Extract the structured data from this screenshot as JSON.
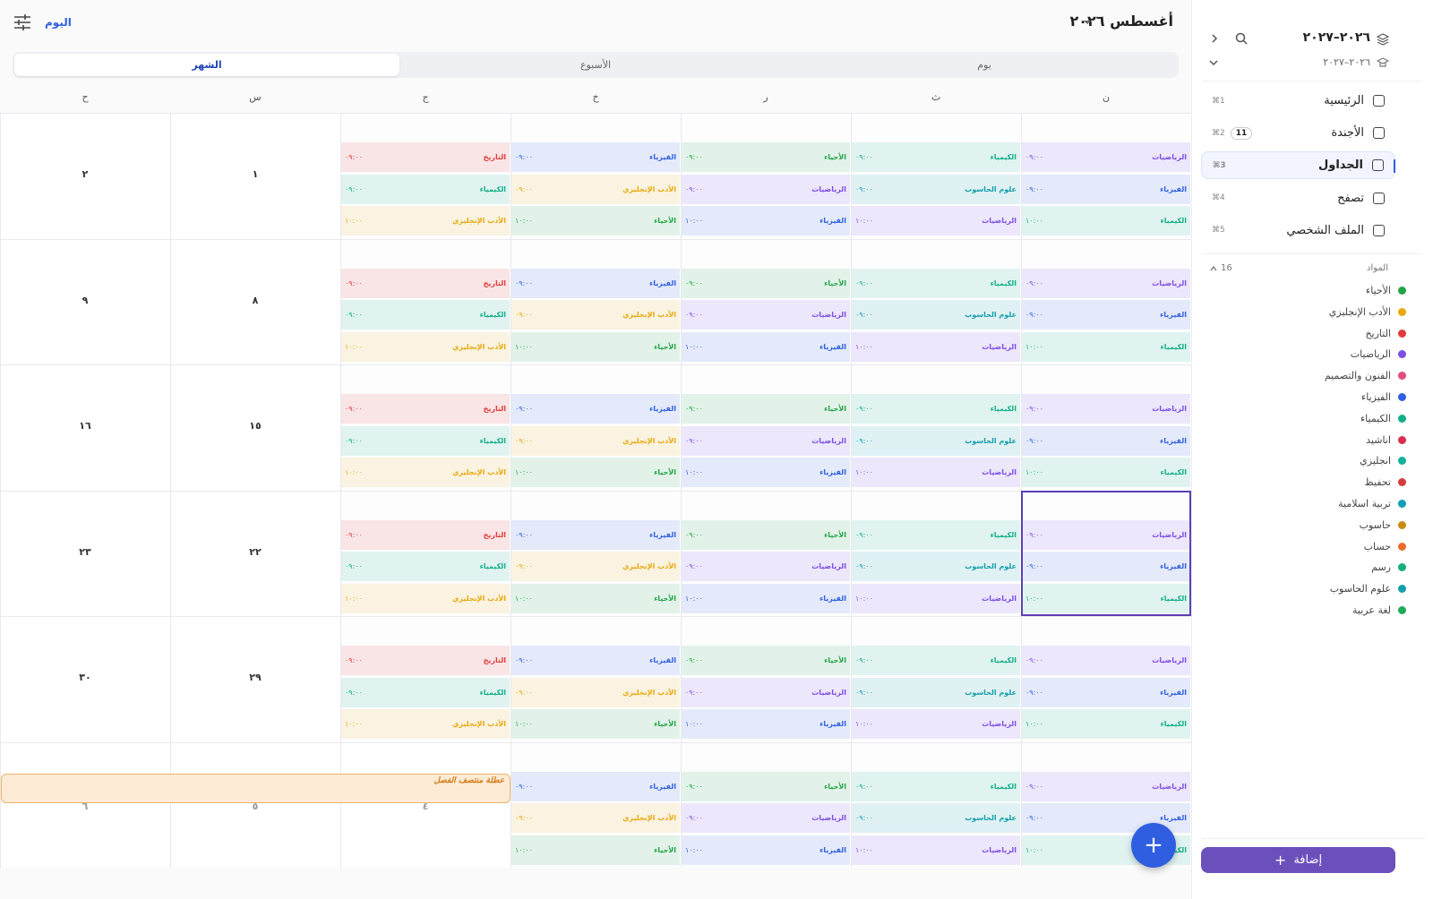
{
  "header": {
    "title": "أغسطس ٢٠٢٦",
    "today": "اليوم",
    "tabs": [
      {
        "label": "يوم"
      },
      {
        "label": "الأسبوع"
      },
      {
        "label": "الشهر",
        "active": true
      }
    ]
  },
  "weekdays": [
    "ن",
    "ث",
    "ر",
    "خ",
    "ج",
    "س",
    "ح"
  ],
  "weeks": [
    {
      "days": [
        {
          "events": [
            {
              "subject": "الرياضيات",
              "time": "٠٩:٠٠"
            },
            {
              "subject": "الفيزياء",
              "time": "٠٩:٠٠"
            },
            {
              "subject": "الكيمياء",
              "time": "١٠:٠٠"
            }
          ]
        },
        {
          "events": [
            {
              "subject": "الكيمياء",
              "time": "٠٩:٠٠"
            },
            {
              "subject": "علوم الحاسوب",
              "time": "٠٩:٠٠"
            },
            {
              "subject": "الرياضيات",
              "time": "١٠:٠٠"
            }
          ]
        },
        {
          "events": [
            {
              "subject": "الأحياء",
              "time": "٠٩:٠٠"
            },
            {
              "subject": "الرياضيات",
              "time": "٠٩:٠٠"
            },
            {
              "subject": "الفيزياء",
              "time": "١٠:٠٠"
            }
          ]
        },
        {
          "events": [
            {
              "subject": "الفيزياء",
              "time": "٠٩:٠٠"
            },
            {
              "subject": "الأدب الإنجليزي",
              "time": "٠٩:٠٠"
            },
            {
              "subject": "الأحياء",
              "time": "١٠:٠٠"
            }
          ]
        },
        {
          "events": [
            {
              "subject": "التاريخ",
              "time": "٠٩:٠٠"
            },
            {
              "subject": "الكيمياء",
              "time": "٠٩:٠٠"
            },
            {
              "subject": "الأدب الإنجليزي",
              "time": "١٠:٠٠"
            }
          ]
        },
        {
          "number": "١"
        },
        {
          "number": "٢"
        }
      ]
    },
    {
      "days": [
        {
          "events": [
            {
              "subject": "الرياضيات",
              "time": "٠٩:٠٠"
            },
            {
              "subject": "الفيزياء",
              "time": "٠٩:٠٠"
            },
            {
              "subject": "الكيمياء",
              "time": "١٠:٠٠"
            }
          ]
        },
        {
          "events": [
            {
              "subject": "الكيمياء",
              "time": "٠٩:٠٠"
            },
            {
              "subject": "علوم الحاسوب",
              "time": "٠٩:٠٠"
            },
            {
              "subject": "الرياضيات",
              "time": "١٠:٠٠"
            }
          ]
        },
        {
          "events": [
            {
              "subject": "الأحياء",
              "time": "٠٩:٠٠"
            },
            {
              "subject": "الرياضيات",
              "time": "٠٩:٠٠"
            },
            {
              "subject": "الفيزياء",
              "time": "١٠:٠٠"
            }
          ]
        },
        {
          "events": [
            {
              "subject": "الفيزياء",
              "time": "٠٩:٠٠"
            },
            {
              "subject": "الأدب الإنجليزي",
              "time": "٠٩:٠٠"
            },
            {
              "subject": "الأحياء",
              "time": "١٠:٠٠"
            }
          ]
        },
        {
          "events": [
            {
              "subject": "التاريخ",
              "time": "٠٩:٠٠"
            },
            {
              "subject": "الكيمياء",
              "time": "٠٩:٠٠"
            },
            {
              "subject": "الأدب الإنجليزي",
              "time": "١٠:٠٠"
            }
          ]
        },
        {
          "number": "٨"
        },
        {
          "number": "٩"
        }
      ]
    },
    {
      "days": [
        {
          "events": [
            {
              "subject": "الرياضيات",
              "time": "٠٩:٠٠"
            },
            {
              "subject": "الفيزياء",
              "time": "٠٩:٠٠"
            },
            {
              "subject": "الكيمياء",
              "time": "١٠:٠٠"
            }
          ]
        },
        {
          "events": [
            {
              "subject": "الكيمياء",
              "time": "٠٩:٠٠"
            },
            {
              "subject": "علوم الحاسوب",
              "time": "٠٩:٠٠"
            },
            {
              "subject": "الرياضيات",
              "time": "١٠:٠٠"
            }
          ]
        },
        {
          "events": [
            {
              "subject": "الأحياء",
              "time": "٠٩:٠٠"
            },
            {
              "subject": "الرياضيات",
              "time": "٠٩:٠٠"
            },
            {
              "subject": "الفيزياء",
              "time": "١٠:٠٠"
            }
          ]
        },
        {
          "events": [
            {
              "subject": "الفيزياء",
              "time": "٠٩:٠٠"
            },
            {
              "subject": "الأدب الإنجليزي",
              "time": "٠٩:٠٠"
            },
            {
              "subject": "الأحياء",
              "time": "١٠:٠٠"
            }
          ]
        },
        {
          "events": [
            {
              "subject": "التاريخ",
              "time": "٠٩:٠٠"
            },
            {
              "subject": "الكيمياء",
              "time": "٠٩:٠٠"
            },
            {
              "subject": "الأدب الإنجليزي",
              "time": "١٠:٠٠"
            }
          ]
        },
        {
          "number": "١٥"
        },
        {
          "number": "١٦"
        }
      ]
    },
    {
      "days": [
        {
          "selected": true,
          "events": [
            {
              "subject": "الرياضيات",
              "time": "٠٩:٠٠"
            },
            {
              "subject": "الفيزياء",
              "time": "٠٩:٠٠"
            },
            {
              "subject": "الكيمياء",
              "time": "١٠:٠٠"
            }
          ]
        },
        {
          "events": [
            {
              "subject": "الكيمياء",
              "time": "٠٩:٠٠"
            },
            {
              "subject": "علوم الحاسوب",
              "time": "٠٩:٠٠"
            },
            {
              "subject": "الرياضيات",
              "time": "١٠:٠٠"
            }
          ]
        },
        {
          "events": [
            {
              "subject": "الأحياء",
              "time": "٠٩:٠٠"
            },
            {
              "subject": "الرياضيات",
              "time": "٠٩:٠٠"
            },
            {
              "subject": "الفيزياء",
              "time": "١٠:٠٠"
            }
          ]
        },
        {
          "events": [
            {
              "subject": "الفيزياء",
              "time": "٠٩:٠٠"
            },
            {
              "subject": "الأدب الإنجليزي",
              "time": "٠٩:٠٠"
            },
            {
              "subject": "الأحياء",
              "time": "١٠:٠٠"
            }
          ]
        },
        {
          "events": [
            {
              "subject": "التاريخ",
              "time": "٠٩:٠٠"
            },
            {
              "subject": "الكيمياء",
              "time": "٠٩:٠٠"
            },
            {
              "subject": "الأدب الإنجليزي",
              "time": "١٠:٠٠"
            }
          ]
        },
        {
          "number": "٢٢"
        },
        {
          "number": "٢٣"
        }
      ]
    },
    {
      "days": [
        {
          "events": [
            {
              "subject": "الرياضيات",
              "time": "٠٩:٠٠"
            },
            {
              "subject": "الفيزياء",
              "time": "٠٩:٠٠"
            },
            {
              "subject": "الكيمياء",
              "time": "١٠:٠٠"
            }
          ]
        },
        {
          "events": [
            {
              "subject": "الكيمياء",
              "time": "٠٩:٠٠"
            },
            {
              "subject": "علوم الحاسوب",
              "time": "٠٩:٠٠"
            },
            {
              "subject": "الرياضيات",
              "time": "١٠:٠٠"
            }
          ]
        },
        {
          "events": [
            {
              "subject": "الأحياء",
              "time": "٠٩:٠٠"
            },
            {
              "subject": "الرياضيات",
              "time": "٠٩:٠٠"
            },
            {
              "subject": "الفيزياء",
              "time": "١٠:٠٠"
            }
          ]
        },
        {
          "events": [
            {
              "subject": "الفيزياء",
              "time": "٠٩:٠٠"
            },
            {
              "subject": "الأدب الإنجليزي",
              "time": "٠٩:٠٠"
            },
            {
              "subject": "الأحياء",
              "time": "١٠:٠٠"
            }
          ]
        },
        {
          "events": [
            {
              "subject": "التاريخ",
              "time": "٠٩:٠٠"
            },
            {
              "subject": "الكيمياء",
              "time": "٠٩:٠٠"
            },
            {
              "subject": "الأدب الإنجليزي",
              "time": "١٠:٠٠"
            }
          ]
        },
        {
          "number": "٢٩"
        },
        {
          "number": "٣٠"
        }
      ]
    },
    {
      "days": [
        {
          "events": [
            {
              "subject": "الرياضيات",
              "time": "٠٩:٠٠"
            },
            {
              "subject": "الفيزياء",
              "time": "٠٩:٠٠"
            },
            {
              "subject": "الكيمياء",
              "time": "١٠:٠٠"
            }
          ]
        },
        {
          "events": [
            {
              "subject": "الكيمياء",
              "time": "٠٩:٠٠"
            },
            {
              "subject": "علوم الحاسوب",
              "time": "٠٩:٠٠"
            },
            {
              "subject": "الرياضيات",
              "time": "١٠:٠٠"
            }
          ]
        },
        {
          "events": [
            {
              "subject": "الأحياء",
              "time": "٠٩:٠٠"
            },
            {
              "subject": "الرياضيات",
              "time": "٠٩:٠٠"
            },
            {
              "subject": "الفيزياء",
              "time": "١٠:٠٠"
            }
          ]
        },
        {
          "events": [
            {
              "subject": "الفيزياء",
              "time": "٠٩:٠٠"
            },
            {
              "subject": "الأدب الإنجليزي",
              "time": "٠٩:٠٠"
            },
            {
              "subject": "الأحياء",
              "time": "١٠:٠٠"
            }
          ]
        },
        {
          "number": "٤",
          "holiday": "عطلة منتصف الفصل"
        },
        {
          "number": "٥"
        },
        {
          "number": "٦"
        }
      ]
    }
  ],
  "sidebar": {
    "year": "٢٠٢٦–٢٠٢٧",
    "term": "٢٠٢٦–٢٠٢٧",
    "nav": [
      {
        "label": "الرئيسية",
        "shortcut": "⌘1"
      },
      {
        "label": "الأجندة",
        "shortcut": "⌘2",
        "badge": "11"
      },
      {
        "label": "الجداول",
        "shortcut": "⌘3",
        "active": true
      },
      {
        "label": "تصفح",
        "shortcut": "⌘4"
      },
      {
        "label": "الملف الشخصي",
        "shortcut": "⌘5"
      }
    ],
    "subjects_title": "المواد",
    "subjects_count": "16",
    "subjects": [
      {
        "name": "الأحياء",
        "color": "#22a447"
      },
      {
        "name": "الأدب الإنجليزي",
        "color": "#e8a90e"
      },
      {
        "name": "التاريخ",
        "color": "#e03b3b"
      },
      {
        "name": "الرياضيات",
        "color": "#7c4ee4"
      },
      {
        "name": "الفنون والتصميم",
        "color": "#e64980"
      },
      {
        "name": "الفيزياء",
        "color": "#2f5fe0"
      },
      {
        "name": "الكيمياء",
        "color": "#12b088"
      },
      {
        "name": "اناشيد",
        "color": "#d9304f"
      },
      {
        "name": "انجليزي",
        "color": "#12b39a"
      },
      {
        "name": "تحفيظ",
        "color": "#d63b3b"
      },
      {
        "name": "تربية اسلامية",
        "color": "#0e9fb5"
      },
      {
        "name": "حاسوب",
        "color": "#c98a12"
      },
      {
        "name": "حساب",
        "color": "#ee6a2a"
      },
      {
        "name": "رسم",
        "color": "#18b07a"
      },
      {
        "name": "علوم الحاسوب",
        "color": "#14a0aa"
      },
      {
        "name": "لغة عربية",
        "color": "#1faa5a"
      }
    ],
    "add_button": "إضافة"
  }
}
